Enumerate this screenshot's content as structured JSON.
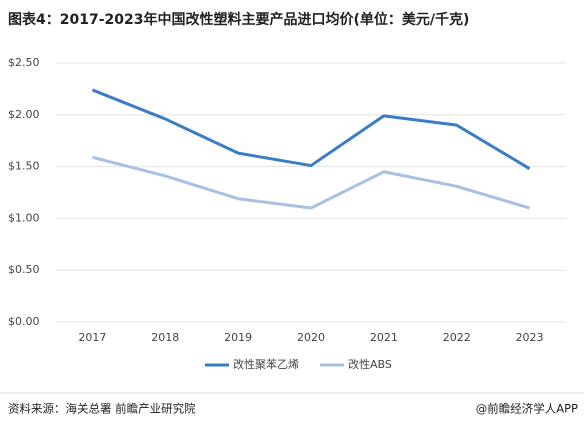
{
  "chart_data": {
    "type": "line",
    "title": "图表4：2017-2023年中国改性塑料主要产品进口均价(单位：美元/千克)",
    "categories": [
      "2017",
      "2018",
      "2019",
      "2020",
      "2021",
      "2022",
      "2023"
    ],
    "series": [
      {
        "name": "改性聚苯乙烯",
        "color": "#3b7dc4",
        "values": [
          2.24,
          1.96,
          1.63,
          1.51,
          1.99,
          1.9,
          1.48
        ]
      },
      {
        "name": "改性ABS",
        "color": "#a9bfe3",
        "values": [
          1.59,
          1.41,
          1.19,
          1.1,
          1.45,
          1.31,
          1.1
        ]
      }
    ],
    "ylim": [
      0,
      2.5
    ],
    "yticks": [
      {
        "value": 0,
        "label": "$0.00"
      },
      {
        "value": 0.5,
        "label": "$0.50"
      },
      {
        "value": 1,
        "label": "$1.00"
      },
      {
        "value": 1.5,
        "label": "$1.50"
      },
      {
        "value": 2,
        "label": "$2.00"
      },
      {
        "value": 2.5,
        "label": "$2.50"
      }
    ],
    "grid": true,
    "source": "资料来源：海关总署 前瞻产业研究院",
    "credit": "@前瞻经济学人APP"
  }
}
